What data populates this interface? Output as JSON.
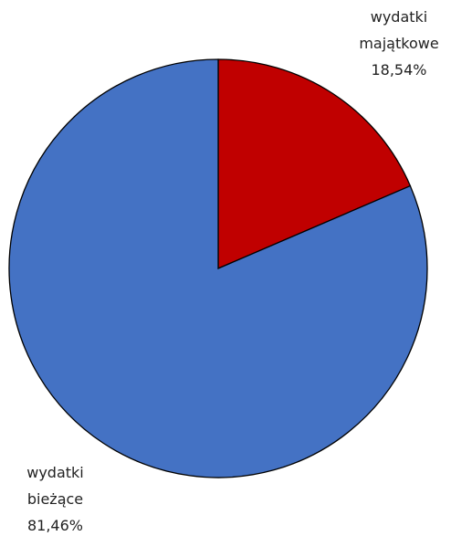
{
  "chart_data": {
    "type": "pie",
    "categories": [
      "wydatki majątkowe",
      "wydatki bieżące"
    ],
    "values": [
      18.54,
      81.46
    ],
    "value_labels": [
      "18,54%",
      "81,46%"
    ],
    "colors": [
      "#c00000",
      "#4472c4"
    ]
  }
}
